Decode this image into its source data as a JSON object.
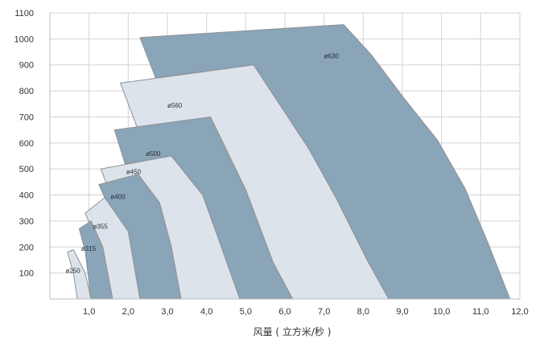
{
  "chart_data": {
    "type": "area",
    "title": "",
    "xlabel": "风量 ( 立方米/秒 )",
    "ylabel": "",
    "xlim": [
      0,
      12
    ],
    "ylim": [
      0,
      1100
    ],
    "grid": true,
    "x_ticks": [
      {
        "v": 1,
        "label": "1,0"
      },
      {
        "v": 2,
        "label": "2,0"
      },
      {
        "v": 3,
        "label": "3,0"
      },
      {
        "v": 4,
        "label": "4,0"
      },
      {
        "v": 5,
        "label": "5,0"
      },
      {
        "v": 6,
        "label": "6,0"
      },
      {
        "v": 7,
        "label": "7,0"
      },
      {
        "v": 8,
        "label": "8,0"
      },
      {
        "v": 9,
        "label": "9,0"
      },
      {
        "v": 10,
        "label": "10,0"
      },
      {
        "v": 11,
        "label": "11,0"
      },
      {
        "v": 12,
        "label": "12,0"
      }
    ],
    "y_ticks": [
      {
        "v": 100,
        "label": "100"
      },
      {
        "v": 200,
        "label": "200"
      },
      {
        "v": 300,
        "label": "300"
      },
      {
        "v": 400,
        "label": "400"
      },
      {
        "v": 500,
        "label": "500"
      },
      {
        "v": 600,
        "label": "600"
      },
      {
        "v": 700,
        "label": "700"
      },
      {
        "v": 800,
        "label": "800"
      },
      {
        "v": 900,
        "label": "900"
      },
      {
        "v": 1000,
        "label": "1000"
      },
      {
        "v": 1100,
        "label": "1100"
      }
    ],
    "colors": {
      "dark": "#8aa4b8",
      "light": "#dde3ea",
      "edge": "#8e9296"
    },
    "series": [
      {
        "name": "ø630",
        "shade": "dark",
        "label_at": [
          7.0,
          925
        ],
        "polygon": [
          [
            2.3,
            1005
          ],
          [
            7.5,
            1055
          ],
          [
            8.2,
            940
          ],
          [
            9.0,
            780
          ],
          [
            9.9,
            610
          ],
          [
            10.6,
            425
          ],
          [
            11.2,
            210
          ],
          [
            11.75,
            0
          ],
          [
            8.65,
            0
          ],
          [
            8.1,
            150
          ],
          [
            7.3,
            390
          ],
          [
            6.6,
            580
          ],
          [
            5.9,
            740
          ],
          [
            5.2,
            900
          ],
          [
            2.7,
            850
          ]
        ]
      },
      {
        "name": "ø560",
        "shade": "light",
        "label_at": [
          3.0,
          735
        ],
        "polygon": [
          [
            1.8,
            830
          ],
          [
            5.2,
            900
          ],
          [
            5.9,
            740
          ],
          [
            6.6,
            580
          ],
          [
            7.3,
            390
          ],
          [
            8.1,
            150
          ],
          [
            8.65,
            0
          ],
          [
            6.2,
            0
          ],
          [
            5.7,
            140
          ],
          [
            5.0,
            420
          ],
          [
            4.1,
            700
          ],
          [
            3.95,
            690
          ],
          [
            2.25,
            650
          ]
        ]
      },
      {
        "name": "ø500",
        "shade": "dark",
        "label_at": [
          2.45,
          550
        ],
        "polygon": [
          [
            1.65,
            650
          ],
          [
            4.1,
            700
          ],
          [
            5.0,
            420
          ],
          [
            5.7,
            140
          ],
          [
            6.2,
            0
          ],
          [
            4.85,
            0
          ],
          [
            4.4,
            190
          ],
          [
            3.9,
            400
          ],
          [
            3.1,
            550
          ],
          [
            2.0,
            480
          ]
        ]
      },
      {
        "name": "ø450",
        "shade": "light",
        "label_at": [
          1.95,
          480
        ],
        "polygon": [
          [
            1.3,
            500
          ],
          [
            3.1,
            550
          ],
          [
            3.9,
            400
          ],
          [
            4.4,
            190
          ],
          [
            4.85,
            0
          ],
          [
            3.35,
            0
          ],
          [
            3.1,
            200
          ],
          [
            2.8,
            370
          ],
          [
            2.25,
            480
          ],
          [
            1.45,
            440
          ]
        ]
      },
      {
        "name": "ø400",
        "shade": "dark",
        "label_at": [
          1.55,
          385
        ],
        "polygon": [
          [
            1.25,
            440
          ],
          [
            2.25,
            480
          ],
          [
            2.8,
            370
          ],
          [
            3.1,
            200
          ],
          [
            3.35,
            0
          ],
          [
            2.3,
            0
          ],
          [
            2.0,
            260
          ],
          [
            1.4,
            390
          ]
        ]
      },
      {
        "name": "ø355",
        "shade": "light",
        "label_at": [
          1.1,
          270
        ],
        "polygon": [
          [
            0.9,
            330
          ],
          [
            1.4,
            390
          ],
          [
            2.0,
            260
          ],
          [
            2.3,
            0
          ],
          [
            1.6,
            0
          ],
          [
            1.35,
            200
          ],
          [
            1.05,
            300
          ],
          [
            1.0,
            295
          ]
        ]
      },
      {
        "name": "ø315",
        "shade": "dark",
        "label_at": [
          0.8,
          185
        ],
        "polygon": [
          [
            0.75,
            270
          ],
          [
            1.05,
            300
          ],
          [
            1.35,
            200
          ],
          [
            1.6,
            0
          ],
          [
            1.05,
            0
          ],
          [
            0.9,
            185
          ]
        ]
      },
      {
        "name": "ø250",
        "shade": "light",
        "label_at": [
          0.4,
          100
        ],
        "polygon": [
          [
            0.45,
            180
          ],
          [
            0.6,
            190
          ],
          [
            0.9,
            100
          ],
          [
            1.05,
            0
          ],
          [
            0.7,
            0
          ],
          [
            0.6,
            100
          ]
        ]
      }
    ]
  }
}
